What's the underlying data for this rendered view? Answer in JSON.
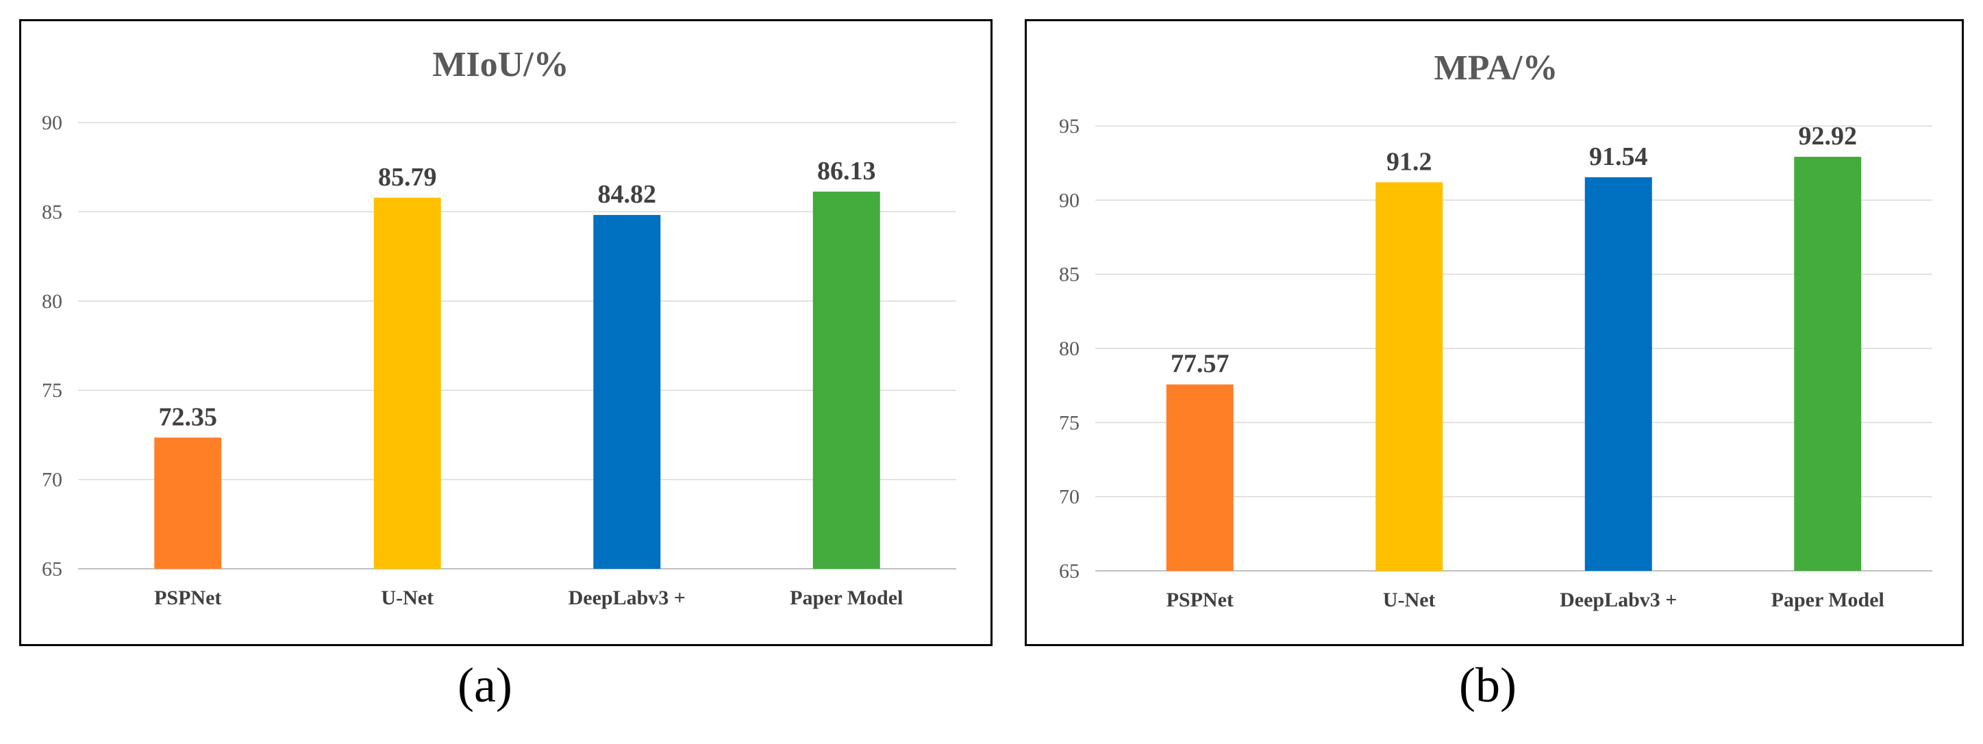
{
  "figure": {
    "captions": [
      "(a)",
      "(b)"
    ]
  },
  "chart_data": [
    {
      "type": "bar",
      "title": "MIoU/%",
      "categories": [
        "PSPNet",
        "U-Net",
        "DeepLabv3 +",
        "Paper Model"
      ],
      "values": [
        72.35,
        85.79,
        84.82,
        86.13
      ],
      "value_labels": [
        "72.35",
        "85.79",
        "84.82",
        "86.13"
      ],
      "colors": [
        "#FF7F27",
        "#FFC000",
        "#0070C0",
        "#43AC3C"
      ],
      "ylim": [
        65,
        90
      ],
      "yticks": [
        65,
        70,
        75,
        80,
        85,
        90
      ],
      "grid": true,
      "legend": "none"
    },
    {
      "type": "bar",
      "title": "MPA/%",
      "categories": [
        "PSPNet",
        "U-Net",
        "DeepLabv3 +",
        "Paper Model"
      ],
      "values": [
        77.57,
        91.2,
        91.54,
        92.92
      ],
      "value_labels": [
        "77.57",
        "91.2",
        "91.54",
        "92.92"
      ],
      "colors": [
        "#FF7F27",
        "#FFC000",
        "#0070C0",
        "#43AC3C"
      ],
      "ylim": [
        65,
        95
      ],
      "yticks": [
        65,
        70,
        75,
        80,
        85,
        90,
        95
      ],
      "grid": true,
      "legend": "none"
    }
  ]
}
